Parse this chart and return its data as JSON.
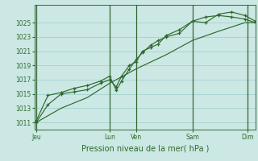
{
  "bg_color": "#cce8e4",
  "grid_color_major": "#99cccc",
  "grid_color_minor": "#bbdddd",
  "line_color": "#2d6a2d",
  "vline_color": "#336633",
  "xlabel": "Pression niveau de la mer( hPa )",
  "ylim": [
    1010.0,
    1027.5
  ],
  "yticks": [
    1011,
    1013,
    1015,
    1017,
    1019,
    1021,
    1023,
    1025
  ],
  "xlim": [
    0,
    8.4
  ],
  "day_labels": [
    "Jeu",
    "Lun",
    "Ven",
    "Sam",
    "Dim"
  ],
  "day_positions": [
    0.05,
    2.85,
    3.85,
    6.0,
    8.1
  ],
  "vline_positions": [
    0.05,
    2.85,
    3.85,
    6.0,
    8.1
  ],
  "series1_x": [
    0.05,
    0.5,
    1.0,
    1.5,
    2.0,
    2.5,
    2.85,
    3.1,
    3.3,
    3.6,
    3.85,
    4.1,
    4.4,
    4.7,
    5.0,
    5.5,
    6.0,
    6.5,
    7.0,
    7.5,
    8.0,
    8.4
  ],
  "series1_y": [
    1011,
    1013.5,
    1015.0,
    1015.3,
    1015.6,
    1016.5,
    1017.0,
    1016.0,
    1017.5,
    1019.0,
    1019.5,
    1021.0,
    1021.5,
    1022.0,
    1023.2,
    1024.0,
    1025.2,
    1025.8,
    1026.0,
    1025.8,
    1025.5,
    1025.0
  ],
  "series2_x": [
    0.05,
    0.5,
    1.0,
    1.5,
    2.0,
    2.5,
    2.85,
    3.1,
    3.3,
    3.6,
    3.85,
    4.1,
    4.4,
    4.7,
    5.0,
    5.5,
    6.0,
    6.5,
    7.0,
    7.5,
    8.0,
    8.4
  ],
  "series2_y": [
    1011.2,
    1014.8,
    1015.2,
    1015.8,
    1016.2,
    1016.8,
    1017.5,
    1015.5,
    1016.8,
    1018.5,
    1019.8,
    1020.8,
    1021.8,
    1022.5,
    1023.0,
    1023.5,
    1025.2,
    1025.0,
    1026.2,
    1026.5,
    1026.0,
    1025.2
  ],
  "series3_x": [
    0.05,
    1.0,
    2.0,
    2.85,
    3.85,
    5.0,
    6.0,
    7.0,
    8.0,
    8.4
  ],
  "series3_y": [
    1011.0,
    1013.0,
    1014.5,
    1016.5,
    1018.5,
    1020.5,
    1022.5,
    1023.8,
    1025.0,
    1025.0
  ],
  "xlabel_fontsize": 7.0,
  "tick_fontsize": 5.5
}
